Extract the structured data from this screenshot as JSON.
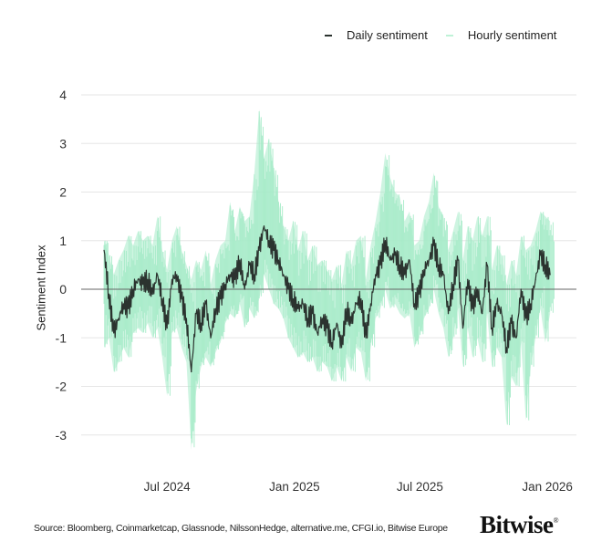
{
  "chart_data": {
    "type": "line",
    "title": "",
    "xlabel": "",
    "ylabel": "Sentiment Index",
    "xlim": [
      "2024-02-28",
      "2026-02-12"
    ],
    "ylim": [
      -3.5,
      4.2
    ],
    "grid": true,
    "legend_placement": "top-right",
    "x_ticks": [
      {
        "date": "2024-07-01",
        "label": "Jul 2024"
      },
      {
        "date": "2025-01-01",
        "label": "Jan 2025"
      },
      {
        "date": "2025-07-01",
        "label": "Jul 2025"
      },
      {
        "date": "2026-01-01",
        "label": "Jan 2026"
      }
    ],
    "y_ticks": [
      4,
      3,
      2,
      1,
      0,
      -1,
      -2,
      -3
    ],
    "x": [
      "2024-04-01",
      "2024-04-08",
      "2024-04-15",
      "2024-04-22",
      "2024-04-29",
      "2024-05-06",
      "2024-05-13",
      "2024-05-20",
      "2024-05-27",
      "2024-06-03",
      "2024-06-10",
      "2024-06-17",
      "2024-06-24",
      "2024-07-01",
      "2024-07-08",
      "2024-07-15",
      "2024-07-22",
      "2024-07-29",
      "2024-08-05",
      "2024-08-12",
      "2024-08-19",
      "2024-08-26",
      "2024-09-02",
      "2024-09-09",
      "2024-09-16",
      "2024-09-23",
      "2024-09-30",
      "2024-10-07",
      "2024-10-14",
      "2024-10-21",
      "2024-10-28",
      "2024-11-04",
      "2024-11-11",
      "2024-11-18",
      "2024-11-25",
      "2024-12-02",
      "2024-12-09",
      "2024-12-16",
      "2024-12-23",
      "2024-12-30",
      "2025-01-06",
      "2025-01-13",
      "2025-01-20",
      "2025-01-27",
      "2025-02-03",
      "2025-02-10",
      "2025-02-17",
      "2025-02-24",
      "2025-03-03",
      "2025-03-10",
      "2025-03-17",
      "2025-03-24",
      "2025-03-31",
      "2025-04-07",
      "2025-04-14",
      "2025-04-21",
      "2025-04-28",
      "2025-05-05",
      "2025-05-12",
      "2025-05-19",
      "2025-05-26",
      "2025-06-02",
      "2025-06-09",
      "2025-06-16",
      "2025-06-23",
      "2025-06-30",
      "2025-07-07",
      "2025-07-14",
      "2025-07-21",
      "2025-07-28",
      "2025-08-04",
      "2025-08-11",
      "2025-08-18",
      "2025-08-25",
      "2025-09-01",
      "2025-09-08",
      "2025-09-15",
      "2025-09-22",
      "2025-09-29",
      "2025-10-06",
      "2025-10-13",
      "2025-10-20",
      "2025-10-27",
      "2025-11-03",
      "2025-11-10",
      "2025-11-17",
      "2025-11-24",
      "2025-12-01",
      "2025-12-08",
      "2025-12-15",
      "2025-12-22",
      "2025-12-29",
      "2026-01-05"
    ],
    "series": [
      {
        "name": "Daily sentiment",
        "color": "#2b332f",
        "values": [
          0.8,
          -0.1,
          -0.9,
          -0.6,
          -0.3,
          -0.4,
          0.0,
          0.2,
          0.1,
          0.2,
          -0.1,
          0.3,
          -0.2,
          -0.8,
          0.2,
          0.3,
          -0.2,
          -0.6,
          -1.7,
          -0.5,
          -0.7,
          -0.3,
          -1.0,
          -0.4,
          -0.2,
          0.1,
          0.3,
          0.2,
          0.6,
          0.0,
          0.5,
          0.3,
          0.8,
          1.3,
          1.0,
          0.8,
          0.6,
          0.3,
          0.0,
          -0.2,
          -0.4,
          -0.3,
          -0.6,
          -0.5,
          -0.9,
          -0.6,
          -0.8,
          -1.1,
          -0.7,
          -1.2,
          -0.4,
          -0.7,
          -0.3,
          -0.2,
          -1.0,
          -0.3,
          0.3,
          0.5,
          1.0,
          0.6,
          0.7,
          0.5,
          0.3,
          0.6,
          -0.3,
          -0.1,
          0.4,
          0.6,
          0.9,
          0.5,
          0.3,
          -0.5,
          0.1,
          0.6,
          -0.8,
          0.2,
          -0.4,
          0.0,
          -0.5,
          0.5,
          -0.8,
          -0.3,
          -0.5,
          -1.2,
          -0.7,
          -1.0,
          0.0,
          -0.6,
          -0.3,
          0.2,
          0.7,
          0.5,
          0.3
        ]
      },
      {
        "name": "Hourly sentiment",
        "color": "#a6ebc8",
        "high": [
          1.0,
          0.7,
          0.3,
          0.6,
          0.8,
          1.1,
          0.9,
          1.2,
          1.0,
          1.1,
          0.9,
          1.5,
          0.8,
          0.4,
          1.0,
          1.3,
          0.8,
          0.5,
          0.2,
          0.6,
          0.4,
          0.8,
          0.1,
          0.6,
          0.9,
          1.0,
          1.8,
          1.2,
          1.7,
          1.4,
          1.5,
          2.4,
          3.7,
          2.7,
          3.1,
          2.5,
          1.8,
          1.3,
          1.0,
          1.4,
          0.8,
          1.2,
          0.6,
          0.9,
          0.5,
          0.6,
          0.4,
          0.2,
          0.5,
          0.1,
          0.8,
          0.5,
          1.0,
          1.1,
          0.2,
          0.9,
          1.4,
          2.0,
          2.8,
          2.3,
          2.0,
          1.9,
          1.4,
          1.6,
          0.9,
          1.0,
          1.5,
          1.8,
          2.4,
          1.7,
          1.5,
          0.8,
          1.2,
          1.6,
          0.6,
          1.3,
          1.0,
          1.5,
          1.1,
          1.5,
          0.4,
          0.9,
          0.7,
          0.1,
          0.6,
          0.3,
          1.1,
          0.8,
          0.9,
          1.2,
          1.6,
          1.5,
          1.4
        ],
        "low": [
          -1.2,
          -1.0,
          -1.7,
          -1.5,
          -1.2,
          -1.4,
          -0.9,
          -0.8,
          -0.9,
          -0.7,
          -1.0,
          -0.8,
          -1.4,
          -2.2,
          -0.9,
          -0.8,
          -1.2,
          -1.5,
          -3.3,
          -2.1,
          -1.6,
          -1.4,
          -1.6,
          -1.3,
          -1.1,
          -0.7,
          -0.5,
          -0.6,
          -0.3,
          -0.8,
          -0.4,
          -0.6,
          -0.2,
          0.3,
          0.0,
          -0.3,
          -0.4,
          -0.6,
          -1.0,
          -1.2,
          -1.4,
          -1.3,
          -1.5,
          -1.4,
          -1.7,
          -1.5,
          -1.6,
          -1.9,
          -1.6,
          -1.9,
          -1.4,
          -1.7,
          -1.2,
          -1.3,
          -1.9,
          -1.2,
          -0.6,
          -0.4,
          0.0,
          -0.4,
          -0.3,
          -0.5,
          -0.6,
          -0.5,
          -1.2,
          -1.0,
          -0.6,
          -0.4,
          0.0,
          -0.5,
          -0.8,
          -1.4,
          -1.0,
          -0.4,
          -1.6,
          -0.8,
          -1.4,
          -1.0,
          -1.5,
          -0.5,
          -1.6,
          -1.2,
          -1.4,
          -2.8,
          -1.8,
          -2.0,
          -1.1,
          -2.7,
          -1.6,
          -1.0,
          -0.4,
          -1.1,
          -0.5
        ]
      }
    ]
  },
  "legend": {
    "daily_label": "Daily sentiment",
    "hourly_label": "Hourly sentiment"
  },
  "footer": {
    "source": "Source: Bloomberg, Coinmarketcap, Glassnode, NilssonHedge, alternative.me, CFGI.io, Bitwise Europe",
    "logo": "Bitwise"
  }
}
